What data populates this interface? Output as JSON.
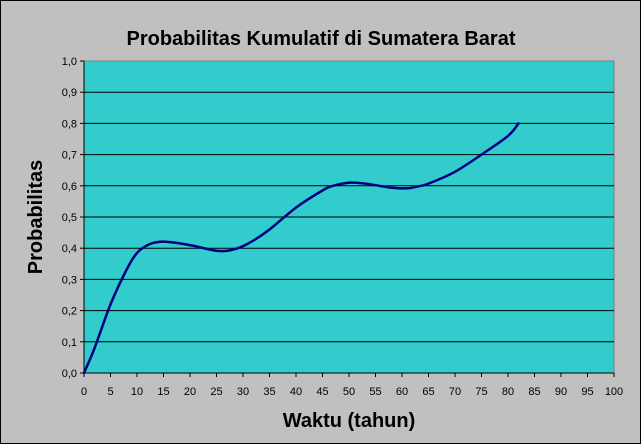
{
  "chart_data": {
    "type": "line",
    "title": "Probabilitas Kumulatif di  Sumatera Barat",
    "xlabel": "Waktu (tahun)",
    "ylabel": "Probabilitas",
    "xlim": [
      0,
      100
    ],
    "ylim": [
      0,
      1
    ],
    "x_ticks": [
      "0",
      "5",
      "10",
      "15",
      "20",
      "25",
      "30",
      "35",
      "40",
      "45",
      "50",
      "55",
      "60",
      "65",
      "70",
      "75",
      "80",
      "85",
      "90",
      "95",
      "100"
    ],
    "y_ticks": [
      "0,0",
      "0,1",
      "0,2",
      "0,3",
      "0,4",
      "0,5",
      "0,6",
      "0,7",
      "0,8",
      "0,9",
      "1,0"
    ],
    "grid": true,
    "legend": "none",
    "plot_background": "#33cccc",
    "line_color": "#000080",
    "series": [
      {
        "x": [
          0,
          2,
          5,
          8,
          10,
          12,
          14,
          16,
          20,
          25,
          28,
          31,
          35,
          40,
          45,
          47,
          50,
          53,
          55,
          58,
          61,
          63,
          65,
          70,
          75,
          80,
          82
        ],
        "y": [
          0.0,
          0.08,
          0.22,
          0.33,
          0.385,
          0.41,
          0.42,
          0.42,
          0.41,
          0.392,
          0.395,
          0.415,
          0.46,
          0.53,
          0.585,
          0.6,
          0.61,
          0.607,
          0.602,
          0.594,
          0.592,
          0.598,
          0.607,
          0.645,
          0.7,
          0.76,
          0.8
        ]
      }
    ]
  }
}
